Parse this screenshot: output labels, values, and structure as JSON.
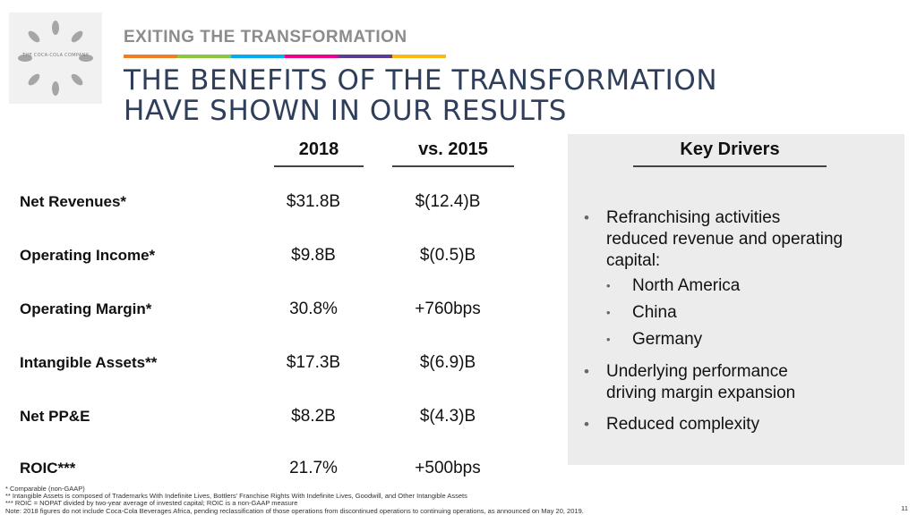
{
  "logo": {
    "text": "THE COCA-COLA COMPANY"
  },
  "section_title": "EXITING THE TRANSFORMATION",
  "color_bar": [
    "#f47d20",
    "#8dc63f",
    "#00aeef",
    "#ec008c",
    "#5a3d8f",
    "#fdb913"
  ],
  "headline": {
    "line1": "THE BENEFITS OF THE TRANSFORMATION",
    "line2": "HAVE SHOWN IN OUR RESULTS"
  },
  "table": {
    "headers": [
      "2018",
      "vs. 2015"
    ],
    "rows": [
      {
        "label": "Net Revenues*",
        "y2018": "$31.8B",
        "vs2015": "$(12.4)B"
      },
      {
        "label": "Operating Income*",
        "y2018": "$9.8B",
        "vs2015": "$(0.5)B"
      },
      {
        "label": "Operating Margin*",
        "y2018": "30.8%",
        "vs2015": "+760bps"
      },
      {
        "label": "Intangible Assets**",
        "y2018": "$17.3B",
        "vs2015": "$(6.9)B"
      },
      {
        "label": "Net PP&E",
        "y2018": "$8.2B",
        "vs2015": "$(4.3)B"
      },
      {
        "label": "ROIC***",
        "y2018": "21.7%",
        "vs2015": "+500bps"
      }
    ]
  },
  "key_drivers": {
    "title": "Key Drivers",
    "bullet1": {
      "line1": "Refranchising activities",
      "line2": "reduced revenue and operating",
      "line3": "capital:"
    },
    "sub_items": [
      "North America",
      "China",
      "Germany"
    ],
    "bullet2": {
      "line1": "Underlying performance",
      "line2": "driving margin expansion"
    },
    "bullet3": "Reduced complexity",
    "bullet_char": "•"
  },
  "footnotes": [
    "* Comparable (non-GAAP)",
    "** Intangible Assets is composed of Trademarks With Indefinite Lives, Bottlers' Franchise Rights With Indefinite Lives, Goodwill, and Other Intangible Assets",
    "*** ROIC = NOPAT divided by two-year average of invested capital; ROIC is a non-GAAP measure",
    "Note: 2018 figures do not include Coca-Cola Beverages Africa, pending reclassification of those operations from discontinued operations to continuing operations, as announced on May 20, 2019."
  ],
  "page_number": "11"
}
